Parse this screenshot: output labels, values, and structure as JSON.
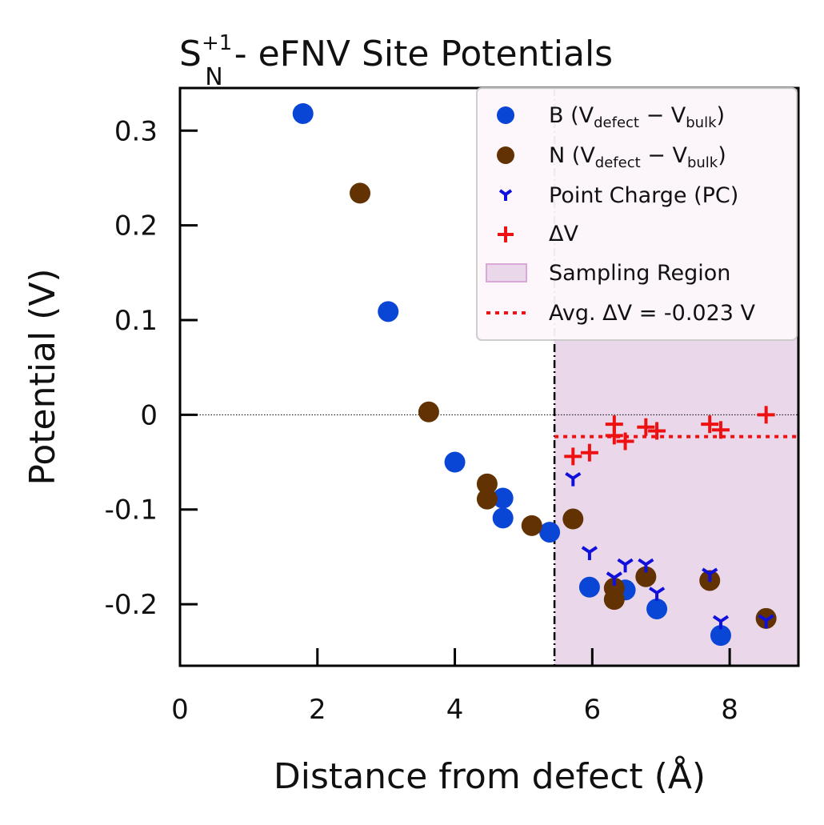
{
  "chart_data": {
    "type": "scatter",
    "title_main": "S",
    "title_sup": "+1",
    "title_sub": "N",
    "title_rest": " - eFNV Site Potentials",
    "xlabel": "Distance from defect (Å)",
    "ylabel": "Potential (V)",
    "xlim": [
      0,
      9.0
    ],
    "ylim": [
      -0.265,
      0.345
    ],
    "xticks": [
      0,
      2,
      4,
      6,
      8
    ],
    "xtick_labels": [
      "0",
      "2",
      "4",
      "6",
      "8"
    ],
    "yticks": [
      -0.2,
      -0.1,
      0,
      0.1,
      0.2,
      0.3
    ],
    "ytick_labels": [
      "-0.2",
      "-0.1",
      "0",
      "0.1",
      "0.2",
      "0.3"
    ],
    "grid": false,
    "legend_position": "top-right",
    "sampling_region": {
      "x_start": 5.45,
      "x_end": 9.0,
      "color": "#ead8ea"
    },
    "avg_delta_v": -0.023,
    "series": [
      {
        "name": "B (V_defect − V_bulk)",
        "color": "#0a46d6",
        "marker": "circle",
        "points": [
          [
            1.79,
            0.318
          ],
          [
            3.03,
            0.109
          ],
          [
            4.0,
            -0.05
          ],
          [
            4.7,
            -0.088
          ],
          [
            4.7,
            -0.109
          ],
          [
            5.38,
            -0.124
          ],
          [
            5.96,
            -0.182
          ],
          [
            6.48,
            -0.185
          ],
          [
            6.94,
            -0.205
          ],
          [
            7.87,
            -0.233
          ]
        ]
      },
      {
        "name": "N (V_defect − V_bulk)",
        "color": "#623202",
        "marker": "circle",
        "points": [
          [
            2.62,
            0.234
          ],
          [
            3.62,
            0.003
          ],
          [
            4.47,
            -0.073
          ],
          [
            4.47,
            -0.089
          ],
          [
            5.12,
            -0.117
          ],
          [
            5.72,
            -0.11
          ],
          [
            6.32,
            -0.183
          ],
          [
            6.32,
            -0.195
          ],
          [
            6.78,
            -0.171
          ],
          [
            7.71,
            -0.175
          ],
          [
            8.53,
            -0.215
          ]
        ]
      },
      {
        "name": "Point Charge (PC)",
        "color": "#1010dd",
        "marker": "tri-down",
        "points": [
          [
            5.72,
            -0.067
          ],
          [
            5.96,
            -0.145
          ],
          [
            6.32,
            -0.172
          ],
          [
            6.48,
            -0.158
          ],
          [
            6.78,
            -0.158
          ],
          [
            6.94,
            -0.188
          ],
          [
            7.71,
            -0.168
          ],
          [
            7.87,
            -0.218
          ],
          [
            8.53,
            -0.217
          ]
        ]
      },
      {
        "name": "ΔV",
        "color": "#ee1111",
        "marker": "plus",
        "points": [
          [
            5.72,
            -0.044
          ],
          [
            5.96,
            -0.04
          ],
          [
            6.32,
            -0.01
          ],
          [
            6.32,
            -0.022
          ],
          [
            6.48,
            -0.028
          ],
          [
            6.78,
            -0.013
          ],
          [
            6.94,
            -0.017
          ],
          [
            7.71,
            -0.01
          ],
          [
            7.87,
            -0.016
          ],
          [
            8.53,
            0.0
          ]
        ]
      }
    ],
    "legend": {
      "b_label": "B (V",
      "b_sub1": "defect",
      "b_mid": " − V",
      "b_sub2": "bulk",
      "b_end": ")",
      "n_label": "N (V",
      "n_sub1": "defect",
      "n_mid": " − V",
      "n_sub2": "bulk",
      "n_end": ")",
      "pc_label": "Point Charge (PC)",
      "dv_label": "ΔV",
      "region_label": "Sampling Region",
      "avg_label": "Avg. ΔV = -0.023 V"
    }
  }
}
